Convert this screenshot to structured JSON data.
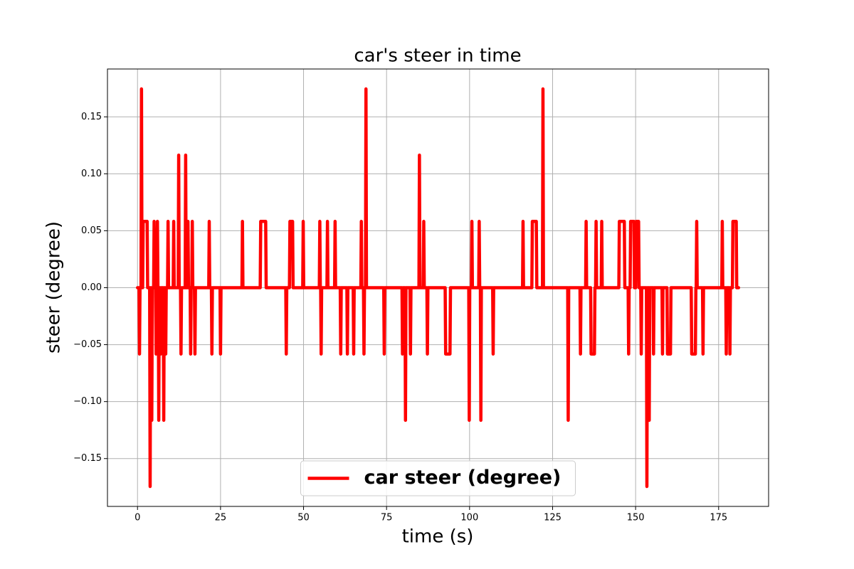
{
  "chart_data": {
    "type": "line",
    "title": "car's steer in time",
    "x_label": "time (s)",
    "y_label": "steer (degree)",
    "x": [
      0,
      0.45,
      0.6,
      0.75,
      1.05,
      1.2,
      1.35,
      1.55,
      1.7,
      2.9,
      3.05,
      3.65,
      3.8,
      3.95,
      4.15,
      4.3,
      4.45,
      4.85,
      5.0,
      5.15,
      5.45,
      5.6,
      5.75,
      5.85,
      6.0,
      6.15,
      6.25,
      6.4,
      6.55,
      6.85,
      7.0,
      7.15,
      7.75,
      7.9,
      8.05,
      8.35,
      8.5,
      8.65,
      9.05,
      9.2,
      9.35,
      10.75,
      10.9,
      11.05,
      12.25,
      12.4,
      12.55,
      12.95,
      13.1,
      13.25,
      14.35,
      14.5,
      14.65,
      15.05,
      15.2,
      15.35,
      15.85,
      16.0,
      16.15,
      16.35,
      16.5,
      16.65,
      17.15,
      17.3,
      17.45,
      21.45,
      21.6,
      21.75,
      22.25,
      22.4,
      22.55,
      24.85,
      25.0,
      25.15,
      31.45,
      31.6,
      31.75,
      36.95,
      37.1,
      38.6,
      38.75,
      44.65,
      44.8,
      44.95,
      45.75,
      45.9,
      46.7,
      46.85,
      49.75,
      49.9,
      50.05,
      54.75,
      54.9,
      55.05,
      55.15,
      55.3,
      55.45,
      57.05,
      57.2,
      57.35,
      59.35,
      59.5,
      59.65,
      61.05,
      61.2,
      61.35,
      63.05,
      63.2,
      63.35,
      64.95,
      65.1,
      65.25,
      67.25,
      67.4,
      67.55,
      68.05,
      68.2,
      68.35,
      68.65,
      68.8,
      68.95,
      74.15,
      74.3,
      74.45,
      79.65,
      79.8,
      79.95,
      80.55,
      80.7,
      80.85,
      82.05,
      82.2,
      82.35,
      84.75,
      84.9,
      85.05,
      86.05,
      86.2,
      86.35,
      87.15,
      87.3,
      87.45,
      92.65,
      92.8,
      94.1,
      94.25,
      99.75,
      99.9,
      100.05,
      100.55,
      100.7,
      100.85,
      102.75,
      102.9,
      103.05,
      103.25,
      103.4,
      103.55,
      106.95,
      107.1,
      107.25,
      115.95,
      116.1,
      116.25,
      118.75,
      118.9,
      120.1,
      120.25,
      121.95,
      122.1,
      122.25,
      129.55,
      129.7,
      129.85,
      133.25,
      133.4,
      133.55,
      134.95,
      135.1,
      135.25,
      136.45,
      136.6,
      137.6,
      137.75,
      137.95,
      138.1,
      138.25,
      139.65,
      139.8,
      139.95,
      144.95,
      145.1,
      146.6,
      146.75,
      147.75,
      147.9,
      148.05,
      148.35,
      148.5,
      149.5,
      149.65,
      150.05,
      150.2,
      150.9,
      151.05,
      151.55,
      151.7,
      151.85,
      153.25,
      153.4,
      153.55,
      153.95,
      154.1,
      154.25,
      155.25,
      155.4,
      155.55,
      157.95,
      158.1,
      158.25,
      159.45,
      159.6,
      160.5,
      160.65,
      166.75,
      166.9,
      168.0,
      168.15,
      168.25,
      168.4,
      168.55,
      170.15,
      170.3,
      170.45,
      175.95,
      176.1,
      176.25,
      177.15,
      177.3,
      177.45,
      178.25,
      178.4,
      178.55,
      179.15,
      179.3,
      180.3,
      180.45,
      181
    ],
    "series": [
      {
        "name": "car steer (degree)",
        "color": "#ff0000",
        "values": [
          0,
          0,
          -0.0582,
          0,
          0,
          0.1745,
          0,
          0,
          0.0582,
          0.0582,
          0,
          0,
          -0.1745,
          0,
          0,
          -0.1164,
          0,
          0,
          0.0582,
          0,
          0,
          -0.0582,
          0,
          0,
          0.0582,
          0,
          0,
          -0.1164,
          0,
          0,
          -0.0582,
          0,
          0,
          -0.1164,
          0,
          0,
          -0.0582,
          0,
          0,
          0.0582,
          0,
          0,
          0.0582,
          0,
          0,
          0.1164,
          0,
          0,
          -0.0582,
          0,
          0,
          0.1164,
          0,
          0,
          0.0582,
          0,
          0,
          -0.0582,
          0,
          0,
          0.0582,
          0,
          0,
          -0.0582,
          0,
          0,
          0.0582,
          0,
          0,
          -0.0582,
          0,
          0,
          -0.0582,
          0,
          0,
          0.0582,
          0,
          0,
          0.0582,
          0.0582,
          0,
          0,
          -0.0582,
          0,
          0,
          0.0582,
          0.0582,
          0,
          0,
          0.0582,
          0,
          0,
          0.0582,
          0,
          0,
          -0.0582,
          0,
          0,
          0.0582,
          0,
          0,
          0.0582,
          0,
          0,
          -0.0582,
          0,
          0,
          -0.0582,
          0,
          0,
          -0.0582,
          0,
          0,
          0.0582,
          0,
          0,
          -0.0582,
          0,
          0,
          0.1745,
          0,
          0,
          -0.0582,
          0,
          0,
          -0.0582,
          0,
          0,
          -0.1164,
          0,
          0,
          -0.0582,
          0,
          0,
          0.1164,
          0,
          0,
          0.0582,
          0,
          0,
          -0.0582,
          0,
          0,
          -0.0582,
          -0.0582,
          0,
          0,
          -0.1164,
          0,
          0,
          0.0582,
          0,
          0,
          0.0582,
          0,
          0,
          -0.1164,
          0,
          0,
          -0.0582,
          0,
          0,
          0.0582,
          0,
          0,
          0.0582,
          0.0582,
          0,
          0,
          0.1745,
          0,
          0,
          -0.1164,
          0,
          0,
          -0.0582,
          0,
          0,
          0.0582,
          0,
          0,
          -0.0582,
          -0.0582,
          0,
          0,
          0.0582,
          0,
          0,
          0.0582,
          0,
          0,
          0.0582,
          0.0582,
          0,
          0,
          -0.0582,
          0,
          0,
          0.0582,
          0.0582,
          0,
          0,
          0.0582,
          0.0582,
          0,
          0,
          -0.0582,
          0,
          0,
          -0.1745,
          0,
          0,
          -0.1164,
          0,
          0,
          -0.0582,
          0,
          0,
          -0.0582,
          0,
          0,
          -0.0582,
          -0.0582,
          0,
          0,
          -0.0582,
          -0.0582,
          0,
          0,
          0.0582,
          0,
          0,
          -0.0582,
          0,
          0,
          0.0582,
          0,
          0,
          -0.0582,
          0,
          0,
          -0.0582,
          0,
          0,
          0.0582,
          0.0582,
          0,
          0
        ]
      }
    ],
    "xlim": [
      -9.05,
      190.05
    ],
    "ylim": [
      -0.192,
      0.192
    ],
    "xticks": [
      0,
      25,
      50,
      75,
      100,
      125,
      150,
      175
    ],
    "yticks": [
      {
        "value": -0.15,
        "label": "−0.15"
      },
      {
        "value": -0.1,
        "label": "−0.10"
      },
      {
        "value": -0.05,
        "label": "−0.05"
      },
      {
        "value": 0,
        "label": "0.00"
      },
      {
        "value": 0.05,
        "label": "0.05"
      },
      {
        "value": 0.1,
        "label": "0.10"
      },
      {
        "value": 0.15,
        "label": "0.15"
      }
    ],
    "grid": true,
    "legend_loc": "lower center"
  }
}
